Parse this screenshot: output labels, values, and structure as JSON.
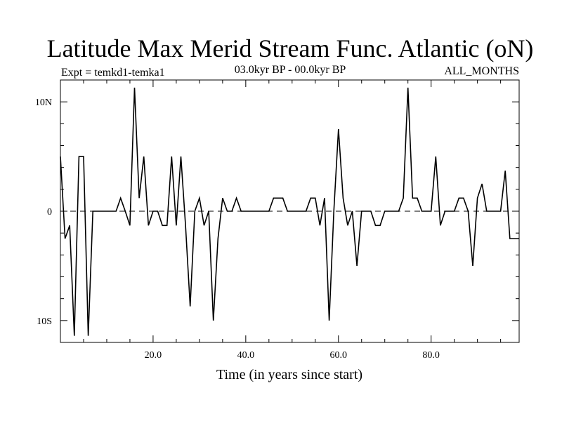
{
  "chart_data": {
    "type": "line",
    "title": "Latitude Max Merid Stream Func. Atlantic (oN)",
    "subtitle_left": "Expt = temkd1-temka1",
    "subtitle_center": "03.0kyr BP - 00.0kyr BP",
    "subtitle_right": "ALL_MONTHS",
    "xlabel": "Time (in years since start)",
    "ylabel": "",
    "xlim": [
      0,
      99
    ],
    "ylim": [
      -12,
      12
    ],
    "x_ticks": [
      20,
      40,
      60,
      80
    ],
    "x_tick_labels": [
      "20.0",
      "40.0",
      "60.0",
      "80.0"
    ],
    "y_ticks": [
      -10,
      0,
      10
    ],
    "y_tick_labels": [
      "10S",
      "0",
      "10N"
    ],
    "zero_line": "dashed",
    "series": [
      {
        "color": "#000000",
        "x": [
          0,
          1,
          2,
          3,
          4,
          5,
          6,
          7,
          8,
          9,
          10,
          11,
          12,
          13,
          14,
          15,
          16,
          17,
          18,
          19,
          20,
          21,
          22,
          23,
          24,
          25,
          26,
          27,
          28,
          29,
          30,
          31,
          32,
          33,
          34,
          35,
          36,
          37,
          38,
          39,
          40,
          41,
          42,
          43,
          44,
          45,
          46,
          47,
          48,
          49,
          50,
          51,
          52,
          53,
          54,
          55,
          56,
          57,
          58,
          59,
          60,
          61,
          62,
          63,
          64,
          65,
          66,
          67,
          68,
          69,
          70,
          71,
          72,
          73,
          74,
          75,
          76,
          77,
          78,
          79,
          80,
          81,
          82,
          83,
          84,
          85,
          86,
          87,
          88,
          89,
          90,
          91,
          92,
          93,
          94,
          95,
          96,
          97,
          98,
          99
        ],
        "y": [
          5,
          -2.5,
          -1.3,
          -11.4,
          5,
          5,
          -11.4,
          0,
          0,
          0,
          0,
          0,
          0,
          1.2,
          0,
          -1.3,
          11.3,
          1.2,
          5,
          -1.3,
          0,
          0,
          -1.3,
          -1.3,
          5,
          -1.3,
          5,
          -1.3,
          -8.7,
          0,
          1.2,
          -1.3,
          0,
          -10,
          -2.5,
          1.2,
          0,
          0,
          1.2,
          0,
          0,
          0,
          0,
          0,
          0,
          0,
          1.2,
          1.2,
          1.2,
          0,
          0,
          0,
          0,
          0,
          1.2,
          1.2,
          -1.3,
          1.2,
          -10,
          0,
          7.5,
          1.2,
          -1.3,
          0,
          -5,
          0,
          0,
          0,
          -1.3,
          -1.3,
          0,
          0,
          0,
          0,
          1.2,
          11.3,
          1.2,
          1.2,
          0,
          0,
          0,
          5,
          -1.3,
          0,
          0,
          0,
          1.2,
          1.2,
          0,
          -5,
          1.2,
          2.5,
          0,
          0,
          0,
          0,
          3.7,
          -2.5,
          -2.5,
          -2.5
        ]
      }
    ]
  }
}
